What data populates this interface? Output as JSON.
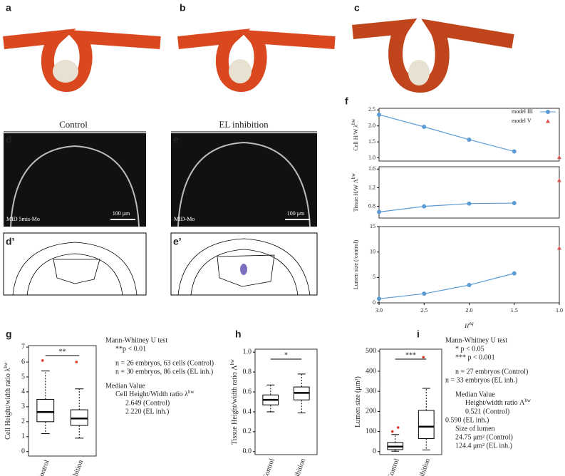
{
  "panel_letters": [
    "a",
    "b",
    "c",
    "d",
    "e",
    "d’",
    "e’",
    "f",
    "g",
    "h",
    "i"
  ],
  "images": {
    "control": "Control",
    "inhibition": "EL inhibition",
    "d_label": "MID 5mis-Mo",
    "e_label": "MID-Mo",
    "scale_d": "100 μm",
    "scale_e": "100 μm"
  },
  "chart_data": [
    {
      "type": "line",
      "x": [
        3.0,
        2.5,
        2.0,
        1.5,
        1.0
      ],
      "xlim": [
        3.0,
        1.0
      ],
      "xticks": [
        {
          "value": 3.0,
          "label": "3.0"
        },
        2.5,
        {
          "value": 2.0,
          "label": "2.0"
        },
        1.5,
        {
          "value": 1.0,
          "label": "1.0"
        }
      ],
      "xlabel": "H",
      "xlabel_sup": "eq",
      "series": [
        {
          "name": "model III",
          "color": "#5b9bd5"
        },
        {
          "name": "model V",
          "color": "#d9534f"
        }
      ],
      "panels": [
        {
          "ylabel": "Cell H/W  λ",
          "ylabel_sup": "hw",
          "ylim": [
            0.9,
            2.55
          ],
          "yticks": [
            {
              "value": 1.0,
              "label": "1.0"
            },
            1.5,
            {
              "value": 2.0,
              "label": "2.0"
            },
            2.5
          ],
          "values": [
            [
              2.35,
              1.97,
              1.57,
              1.2,
              null
            ],
            [
              null,
              null,
              null,
              null,
              1.02
            ]
          ]
        },
        {
          "ylabel": "Tissue H/W  Λ",
          "ylabel_sup": "hw",
          "ylim": [
            0.55,
            1.65
          ],
          "yticks": [
            0.8,
            1.2,
            1.6
          ],
          "values": [
            [
              0.68,
              0.8,
              0.86,
              0.87,
              null
            ],
            [
              null,
              null,
              null,
              null,
              1.36
            ]
          ]
        },
        {
          "ylabel": "Lumen size (/control)",
          "ylim": [
            0,
            15
          ],
          "yticks": [
            0,
            5,
            10,
            15
          ],
          "values": [
            [
              0.8,
              1.8,
              3.5,
              5.8,
              null
            ],
            [
              null,
              null,
              null,
              null,
              10.8
            ]
          ]
        }
      ]
    },
    {
      "type": "box",
      "categories": [
        "Control",
        "EL inhibition"
      ],
      "ylabel": "Cell Height/width ratio  λ",
      "ylabel_sup": "hw",
      "ylim": [
        -0.3,
        7.1
      ],
      "yticks": [
        0,
        1,
        2,
        3,
        4,
        5,
        6,
        7
      ],
      "median": [
        2.649,
        2.22
      ],
      "q1": [
        2.0,
        1.75
      ],
      "q3": [
        3.5,
        2.8
      ],
      "whisker_low": [
        1.2,
        0.9
      ],
      "whisker_high": [
        5.4,
        4.2
      ],
      "outliers": [
        [
          6.1
        ],
        [
          6.0
        ]
      ],
      "color": "#e03a2f",
      "significance": "**",
      "annotations": [
        "Mann-Whitney U test",
        "**p < 0.01",
        "n = 26 embryos, 63 cells (Control)",
        "n = 30 embryos, 86 cells (EL inh.)",
        "Median Value",
        [
          "Cell Height/Width ratio  λ",
          "hw"
        ],
        "2.649 (Control)",
        "2.220 (EL inh.)"
      ]
    },
    {
      "type": "box",
      "categories": [
        "Control",
        "EL inhibition"
      ],
      "ylabel": "Tissue Height/width ratio  Λ",
      "ylabel_sup": "hw",
      "ylim": [
        -0.03,
        1.03
      ],
      "yticks": [
        {
          "value": 0.0,
          "label": "0.0"
        },
        0.2,
        0.4,
        0.6,
        0.8,
        {
          "value": 1.0,
          "label": "1.0"
        }
      ],
      "median": [
        0.521,
        0.59
      ],
      "q1": [
        0.47,
        0.52
      ],
      "q3": [
        0.57,
        0.65
      ],
      "whisker_low": [
        0.4,
        0.39
      ],
      "whisker_high": [
        0.67,
        0.78
      ],
      "outliers": [
        [],
        []
      ],
      "color": "#e03a2f",
      "significance": "*",
      "annotations": []
    },
    {
      "type": "box",
      "categories": [
        "Control",
        "EL inhibition"
      ],
      "ylabel": "Lumen size (μm²)",
      "ylim": [
        -15,
        510
      ],
      "yticks": [
        0,
        100,
        200,
        300,
        400,
        500
      ],
      "median": [
        24.75,
        124.4
      ],
      "q1": [
        10,
        65
      ],
      "q3": [
        45,
        205
      ],
      "whisker_low": [
        2,
        8
      ],
      "whisker_high": [
        85,
        315
      ],
      "outliers": [
        [
          100,
          120
        ],
        [
          470
        ]
      ],
      "color": "#e03a2f",
      "significance": "***",
      "annotations": [
        "Mann-Whitney U test",
        "*     p < 0.05",
        "***  p < 0.001",
        "n = 27 embryos (Control)",
        "n = 33 embryos (EL inh.)",
        "Median Value",
        [
          "Height/width ratio  Λ",
          "hw"
        ],
        "0.521 (Control)",
        "0.590 (EL inh.)",
        "Size of lumen",
        "24.75 μm² (Control)",
        "124.4 μm² (EL inh.)"
      ]
    }
  ]
}
